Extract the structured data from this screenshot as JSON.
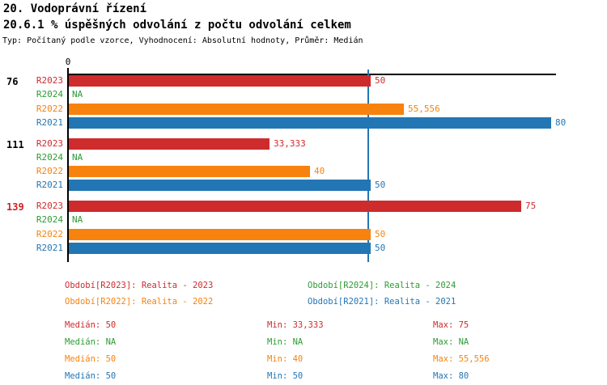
{
  "header": {
    "title_line1": "20. Vodoprávní řízení",
    "title_line2": "20.6.1 % úspěšných odvolání z počtu odvolání celkem",
    "subtitle": "Typ: Počítaný podle vzorce, Vyhodnocení: Absolutní hodnoty, Průměr: Medián"
  },
  "colors": {
    "r2023_red": "#CE2B2D",
    "r2024_green": "#2E9B34",
    "r2022_orange": "#F8820E",
    "r2021_blue": "#2376B4",
    "axis_black": "#000000",
    "highlight_group_red": "#CC2222"
  },
  "chart_data": {
    "type": "bar",
    "orientation": "horizontal",
    "title": "20.6.1 % úspěšných odvolání z počtu odvolání celkem",
    "x_axis": {
      "zero_label": "0",
      "xlim": [
        0,
        81
      ],
      "gridlines": false
    },
    "median_reference_line": {
      "value": 50,
      "color": "#2376B4"
    },
    "series_order": [
      "R2023",
      "R2024",
      "R2022",
      "R2021"
    ],
    "groups": [
      {
        "label": "76",
        "label_color": "#000000",
        "rows": [
          {
            "series": "R2023",
            "color": "#CE2B2D",
            "value": 50,
            "display": "50"
          },
          {
            "series": "R2024",
            "color": "#2E9B34",
            "value": null,
            "display": "NA"
          },
          {
            "series": "R2022",
            "color": "#F8820E",
            "value": 55.556,
            "display": "55,556"
          },
          {
            "series": "R2021",
            "color": "#2376B4",
            "value": 80,
            "display": "80"
          }
        ]
      },
      {
        "label": "111",
        "label_color": "#000000",
        "rows": [
          {
            "series": "R2023",
            "color": "#CE2B2D",
            "value": 33.333,
            "display": "33,333"
          },
          {
            "series": "R2024",
            "color": "#2E9B34",
            "value": null,
            "display": "NA"
          },
          {
            "series": "R2022",
            "color": "#F8820E",
            "value": 40,
            "display": "40"
          },
          {
            "series": "R2021",
            "color": "#2376B4",
            "value": 50,
            "display": "50"
          }
        ]
      },
      {
        "label": "139",
        "label_color": "#CC2222",
        "rows": [
          {
            "series": "R2023",
            "color": "#CE2B2D",
            "value": 75,
            "display": "75"
          },
          {
            "series": "R2024",
            "color": "#2E9B34",
            "value": null,
            "display": "NA"
          },
          {
            "series": "R2022",
            "color": "#F8820E",
            "value": 50,
            "display": "50"
          },
          {
            "series": "R2021",
            "color": "#2376B4",
            "value": 50,
            "display": "50"
          }
        ]
      }
    ]
  },
  "legend": {
    "columns": [
      [
        {
          "text": "Období[R2023]: Realita - 2023",
          "color": "#CE2B2D"
        },
        {
          "text": "Období[R2022]: Realita - 2022",
          "color": "#F8820E"
        }
      ],
      [
        {
          "text": "Období[R2024]: Realita - 2024",
          "color": "#2E9B34"
        },
        {
          "text": "Období[R2021]: Realita - 2021",
          "color": "#2376B4"
        }
      ]
    ]
  },
  "stats": {
    "labels": {
      "median": "Medián:",
      "min": "Min:",
      "max": "Max:"
    },
    "rows": [
      {
        "color": "#CE2B2D",
        "median": "50",
        "min": "33,333",
        "max": "75"
      },
      {
        "color": "#2E9B34",
        "median": "NA",
        "min": "NA",
        "max": "NA"
      },
      {
        "color": "#F8820E",
        "median": "50",
        "min": "40",
        "max": "55,556"
      },
      {
        "color": "#2376B4",
        "median": "50",
        "min": "50",
        "max": "80"
      }
    ]
  }
}
